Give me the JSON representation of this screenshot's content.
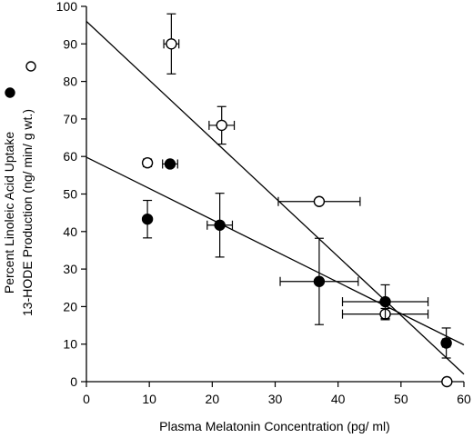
{
  "chart_data": {
    "type": "scatter",
    "xlabel": "Plasma Melatonin Concentration (pg/ ml)",
    "ylabel_lines": [
      "Percent Linoleic Acid Uptake",
      "13-HODE Production (ng/ min/ g wt.)"
    ],
    "xlim": [
      0,
      60
    ],
    "ylim": [
      0,
      100
    ],
    "x_ticks": [
      0,
      10,
      20,
      30,
      40,
      50,
      60
    ],
    "y_ticks": [
      0,
      10,
      20,
      30,
      40,
      50,
      60,
      70,
      80,
      90,
      100
    ],
    "legend": [
      {
        "marker": "filled-circle",
        "label": ""
      },
      {
        "marker": "open-circle",
        "label": ""
      }
    ],
    "series": [
      {
        "marker": "open-circle",
        "points": [
          {
            "x": 13.5,
            "y": 90,
            "xerr": 1.2,
            "yerr": 8
          },
          {
            "x": 21.5,
            "y": 68.3,
            "xerr": 2.0,
            "yerr": 5
          },
          {
            "x": 9.7,
            "y": 58.3,
            "xerr": 0.4,
            "yerr": 1
          },
          {
            "x": 37,
            "y": 48,
            "xerr": 6.5,
            "yerr": 0
          },
          {
            "x": 47.5,
            "y": 18,
            "xerr": 6.8,
            "yerr": 1.5
          },
          {
            "x": 57.3,
            "y": 0,
            "xerr": 0,
            "yerr": 0
          }
        ],
        "fit": {
          "x": [
            0,
            60
          ],
          "y": [
            96,
            2
          ]
        }
      },
      {
        "marker": "filled-circle",
        "points": [
          {
            "x": 13.3,
            "y": 58,
            "xerr": 1.2,
            "yerr": 0
          },
          {
            "x": 9.7,
            "y": 43.3,
            "xerr": 0.4,
            "yerr": 5
          },
          {
            "x": 21.2,
            "y": 41.7,
            "xerr": 2.0,
            "yerr": 8.5
          },
          {
            "x": 37,
            "y": 26.7,
            "xerr": 6.2,
            "yerr": 11.5
          },
          {
            "x": 47.5,
            "y": 21.3,
            "xerr": 6.8,
            "yerr": 4.5
          },
          {
            "x": 57.2,
            "y": 10.3,
            "xerr": 0.6,
            "yerr": 4
          }
        ],
        "fit": {
          "x": [
            0,
            60
          ],
          "y": [
            59.8,
            9.8
          ]
        }
      }
    ]
  }
}
